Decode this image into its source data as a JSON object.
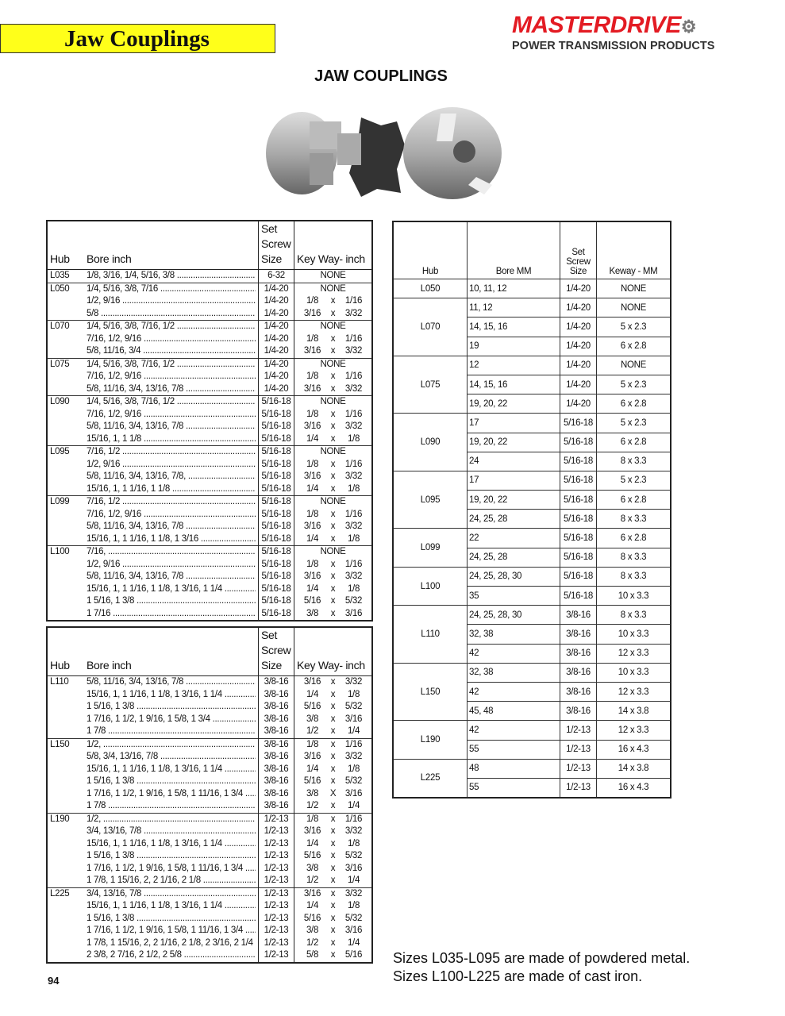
{
  "header": {
    "section_title": "Jaw Couplings",
    "logo_brand": "MASTERDRIVE",
    "logo_tagline": "POWER TRANSMISSION PRODUCTS",
    "page_heading": "JAW COUPLINGS",
    "brand_color": "#e31b23",
    "title_bar_color": "#ffff1a"
  },
  "inch_table_headers": {
    "hub": "Hub",
    "bore": "Bore inch",
    "set_screw": "Set Screw Size",
    "keyway": "Key Way- inch"
  },
  "inch_table_1": [
    [
      "L035",
      "1/8, 3/16, 1/4, 5/16, 3/8",
      "6-32",
      "NONE"
    ],
    [
      "L050",
      "1/4, 5/16, 3/8, 7/16",
      "1/4-20",
      "NONE"
    ],
    [
      "",
      "1/2, 9/16",
      "1/4-20",
      "1/8 x 1/16"
    ],
    [
      "",
      "5/8",
      "1/4-20",
      "3/16 x 3/32"
    ],
    [
      "L070",
      "1/4, 5/16, 3/8, 7/16, 1/2",
      "1/4-20",
      "NONE"
    ],
    [
      "",
      "7/16, 1/2, 9/16",
      "1/4-20",
      "1/8 x 1/16"
    ],
    [
      "",
      "5/8, 11/16, 3/4",
      "1/4-20",
      "3/16 x 3/32"
    ],
    [
      "L075",
      "1/4, 5/16, 3/8, 7/16, 1/2",
      "1/4-20",
      "NONE"
    ],
    [
      "",
      "7/16, 1/2, 9/16",
      "1/4-20",
      "1/8 x 1/16"
    ],
    [
      "",
      "5/8, 11/16, 3/4, 13/16, 7/8",
      "1/4-20",
      "3/16 x 3/32"
    ],
    [
      "L090",
      "1/4, 5/16, 3/8, 7/16, 1/2",
      "5/16-18",
      "NONE"
    ],
    [
      "",
      "7/16, 1/2, 9/16",
      "5/16-18",
      "1/8 x 1/16"
    ],
    [
      "",
      "5/8, 11/16, 3/4, 13/16, 7/8",
      "5/16-18",
      "3/16 x 3/32"
    ],
    [
      "",
      "15/16, 1, 1 1/8",
      "5/16-18",
      "1/4 x 1/8"
    ],
    [
      "L095",
      "7/16, 1/2",
      "5/16-18",
      "NONE"
    ],
    [
      "",
      "1/2, 9/16",
      "5/16-18",
      "1/8 x 1/16"
    ],
    [
      "",
      "5/8, 11/16, 3/4, 13/16, 7/8,",
      "5/16-18",
      "3/16 x 3/32"
    ],
    [
      "",
      "15/16, 1, 1 1/16, 1 1/8",
      "5/16-18",
      "1/4 x 1/8"
    ],
    [
      "L099",
      "7/16, 1/2",
      "5/16-18",
      "NONE"
    ],
    [
      "",
      "7/16, 1/2, 9/16",
      "5/16-18",
      "1/8 x 1/16"
    ],
    [
      "",
      "5/8, 11/16, 3/4, 13/16, 7/8",
      "5/16-18",
      "3/16 x 3/32"
    ],
    [
      "",
      "15/16, 1, 1 1/16, 1 1/8, 1 3/16",
      "5/16-18",
      "1/4 x 1/8"
    ],
    [
      "L100",
      "7/16,",
      "5/16-18",
      "NONE"
    ],
    [
      "",
      "1/2, 9/16",
      "5/16-18",
      "1/8 x 1/16"
    ],
    [
      "",
      "5/8, 11/16, 3/4, 13/16, 7/8",
      "5/16-18",
      "3/16 x 3/32"
    ],
    [
      "",
      "15/16, 1, 1 1/16, 1 1/8, 1 3/16, 1 1/4",
      "5/16-18",
      "1/4 x 1/8"
    ],
    [
      "",
      "1 5/16, 1 3/8",
      "5/16-18",
      "5/16 x 5/32"
    ],
    [
      "",
      "1 7/16",
      "5/16-18",
      "3/8 x 3/16"
    ]
  ],
  "inch_table_2": [
    [
      "L110",
      "5/8, 11/16, 3/4, 13/16, 7/8",
      "3/8-16",
      "3/16 x 3/32"
    ],
    [
      "",
      "15/16, 1, 1 1/16, 1 1/8, 1 3/16, 1 1/4",
      "3/8-16",
      "1/4 x 1/8"
    ],
    [
      "",
      "1 5/16, 1 3/8",
      "3/8-16",
      "5/16 x 5/32"
    ],
    [
      "",
      "1 7/16, 1 1/2, 1 9/16, 1 5/8, 1 3/4",
      "3/8-16",
      "3/8 x 3/16"
    ],
    [
      "",
      "1 7/8",
      "3/8-16",
      "1/2 x 1/4"
    ],
    [
      "L150",
      "1/2,",
      "3/8-16",
      "1/8 x 1/16"
    ],
    [
      "",
      "5/8, 3/4, 13/16, 7/8",
      "3/8-16",
      "3/16 x 3/32"
    ],
    [
      "",
      "15/16, 1, 1 1/16, 1 1/8, 1 3/16, 1 1/4",
      "3/8-16",
      "1/4 x 1/8"
    ],
    [
      "",
      "1 5/16, 1 3/8",
      "3/8-16",
      "5/16 x 5/32"
    ],
    [
      "",
      "1 7/16, 1 1/2, 1 9/16, 1 5/8, 1 11/16, 1 3/4",
      "3/8-16",
      "3/8 X 3/16"
    ],
    [
      "",
      "1 7/8",
      "3/8-16",
      "1/2 x 1/4"
    ],
    [
      "L190",
      "1/2,",
      "1/2-13",
      "1/8 x 1/16"
    ],
    [
      "",
      "3/4, 13/16, 7/8",
      "1/2-13",
      "3/16 x 3/32"
    ],
    [
      "",
      "15/16, 1, 1 1/16, 1 1/8, 1 3/16, 1 1/4",
      "1/2-13",
      "1/4 x 1/8"
    ],
    [
      "",
      "1 5/16, 1 3/8",
      "1/2-13",
      "5/16 x 5/32"
    ],
    [
      "",
      "1 7/16, 1 1/2, 1 9/16, 1 5/8, 1 11/16, 1 3/4",
      "1/2-13",
      "3/8 x 3/16"
    ],
    [
      "",
      "1 7/8, 1 15/16, 2, 2 1/16, 2 1/8",
      "1/2-13",
      "1/2 x 1/4"
    ],
    [
      "L225",
      "3/4, 13/16, 7/8",
      "1/2-13",
      "3/16 x 3/32"
    ],
    [
      "",
      "15/16, 1, 1 1/16, 1 1/8, 1 3/16, 1 1/4",
      "1/2-13",
      "1/4 x 1/8"
    ],
    [
      "",
      "1 5/16, 1 3/8",
      "1/2-13",
      "5/16 x 5/32"
    ],
    [
      "",
      "1 7/16, 1 1/2, 1 9/16, 1 5/8, 1 11/16, 1 3/4",
      "1/2-13",
      "3/8 x 3/16"
    ],
    [
      "",
      "1 7/8, 1 15/16, 2, 2 1/16, 2 1/8, 2 3/16, 2 1/4",
      "1/2-13",
      "1/2 x 1/4"
    ],
    [
      "",
      "2 3/8, 2 7/16, 2 1/2, 2 5/8",
      "1/2-13",
      "5/8 x 5/16"
    ]
  ],
  "mm_table_headers": {
    "hub": "Hub",
    "bore": "Bore MM",
    "set_screw": "Set Screw Size",
    "keyway": "Keway - MM"
  },
  "mm_table": [
    {
      "hub": "L050",
      "rows": [
        [
          "10, 11, 12",
          "1/4-20",
          "NONE"
        ]
      ]
    },
    {
      "hub": "L070",
      "rows": [
        [
          "11, 12",
          "1/4-20",
          "NONE"
        ],
        [
          "14, 15, 16",
          "1/4-20",
          "5 x 2.3"
        ],
        [
          "19",
          "1/4-20",
          "6 x 2.8"
        ]
      ]
    },
    {
      "hub": "L075",
      "rows": [
        [
          "12",
          "1/4-20",
          "NONE"
        ],
        [
          "14, 15, 16",
          "1/4-20",
          "5 x 2.3"
        ],
        [
          "19, 20, 22",
          "1/4-20",
          "6 x 2.8"
        ]
      ]
    },
    {
      "hub": "L090",
      "rows": [
        [
          "17",
          "5/16-18",
          "5 x 2.3"
        ],
        [
          "19, 20, 22",
          "5/16-18",
          "6 x 2.8"
        ],
        [
          "24",
          "5/16-18",
          "8 x 3.3"
        ]
      ]
    },
    {
      "hub": "L095",
      "rows": [
        [
          "17",
          "5/16-18",
          "5 x 2.3"
        ],
        [
          "19, 20, 22",
          "5/16-18",
          "6 x 2.8"
        ],
        [
          "24, 25, 28",
          "5/16-18",
          "8 x 3.3"
        ]
      ]
    },
    {
      "hub": "L099",
      "rows": [
        [
          "22",
          "5/16-18",
          "6 x 2.8"
        ],
        [
          "24, 25, 28",
          "5/16-18",
          "8 x 3.3"
        ]
      ]
    },
    {
      "hub": "L100",
      "rows": [
        [
          "24, 25, 28, 30",
          "5/16-18",
          "8 x 3.3"
        ],
        [
          "35",
          "5/16-18",
          "10 x 3.3"
        ]
      ]
    },
    {
      "hub": "L110",
      "rows": [
        [
          "24, 25, 28, 30",
          "3/8-16",
          "8 x 3.3"
        ],
        [
          "32, 38",
          "3/8-16",
          "10 x 3.3"
        ],
        [
          "42",
          "3/8-16",
          "12 x 3.3"
        ]
      ]
    },
    {
      "hub": "L150",
      "rows": [
        [
          "32, 38",
          "3/8-16",
          "10 x 3.3"
        ],
        [
          "42",
          "3/8-16",
          "12 x 3.3"
        ],
        [
          "45, 48",
          "3/8-16",
          "14 x 3.8"
        ]
      ]
    },
    {
      "hub": "L190",
      "rows": [
        [
          "42",
          "1/2-13",
          "12 x 3.3"
        ],
        [
          "55",
          "1/2-13",
          "16 x 4.3"
        ]
      ]
    },
    {
      "hub": "L225",
      "rows": [
        [
          "48",
          "1/2-13",
          "14 x 3.8"
        ],
        [
          "55",
          "1/2-13",
          "16 x 4.3"
        ]
      ]
    }
  ],
  "footer": {
    "note_1": "Sizes L035-L095 are made of powdered metal.",
    "note_2": "Sizes L100-L225 are made of cast iron.",
    "page_number": "94"
  }
}
